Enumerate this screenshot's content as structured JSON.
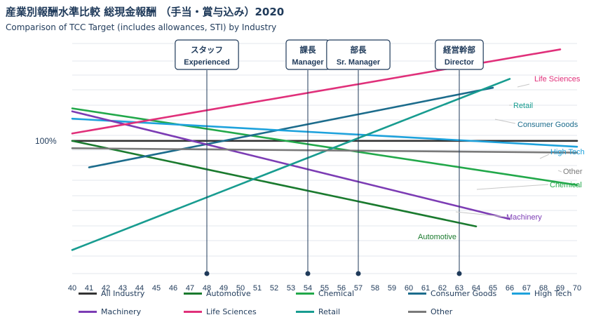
{
  "header": {
    "title": "産業別報酬水準比較 総現金報酬 （手当・賞与込み）2020",
    "subtitle": "Comparison of TCC Target (includes allowances, STI) by Industry"
  },
  "chart_data": {
    "type": "line",
    "title": "産業別報酬水準比較 総現金報酬 （手当・賞与込み）2020",
    "subtitle": "Comparison of TCC Target (includes allowances, STI) by Industry",
    "xlabel": "",
    "ylabel": "",
    "x_ticks": [
      40,
      41,
      42,
      43,
      44,
      45,
      46,
      47,
      48,
      49,
      50,
      51,
      52,
      53,
      54,
      55,
      56,
      57,
      58,
      59,
      60,
      61,
      62,
      63,
      64,
      65,
      66,
      67,
      68,
      69,
      70
    ],
    "xlim": [
      40,
      70
    ],
    "ylim": [
      55,
      133
    ],
    "y_reference": {
      "value": 100,
      "label": "100%"
    },
    "grid": "horizontal",
    "legend_position": "bottom",
    "levels": [
      {
        "x": 48,
        "label_ja": "スタッフ",
        "label_en": "Experienced"
      },
      {
        "x": 54,
        "label_ja": "課長",
        "label_en": "Manager"
      },
      {
        "x": 57,
        "label_ja": "部長",
        "label_en": "Sr. Manager"
      },
      {
        "x": 63,
        "label_ja": "経営幹部",
        "label_en": "Director"
      }
    ],
    "series": [
      {
        "name": "All Industry",
        "color": "#333333",
        "x": [
          40,
          70
        ],
        "values": [
          100,
          100
        ]
      },
      {
        "name": "Automotive",
        "color": "#1a7a2e",
        "x": [
          40,
          64
        ],
        "values": [
          100,
          71
        ]
      },
      {
        "name": "Chemical",
        "color": "#22a84a",
        "x": [
          40,
          70
        ],
        "values": [
          111,
          85
        ]
      },
      {
        "name": "Consumer Goods",
        "color": "#1c6c8c",
        "x": [
          41,
          65
        ],
        "values": [
          91,
          118
        ]
      },
      {
        "name": "High Tech",
        "color": "#1ea2dc",
        "x": [
          40,
          70
        ],
        "values": [
          107.5,
          98
        ]
      },
      {
        "name": "Machinery",
        "color": "#7c3cb4",
        "x": [
          40,
          66
        ],
        "values": [
          110,
          73.5
        ]
      },
      {
        "name": "Life Sciences",
        "color": "#e0307a",
        "x": [
          40,
          69
        ],
        "values": [
          102.5,
          131
        ]
      },
      {
        "name": "Retail",
        "color": "#189c90",
        "x": [
          40,
          66
        ],
        "values": [
          63,
          121
        ]
      },
      {
        "name": "Other",
        "color": "#7a7a7a",
        "x": [
          40,
          70
        ],
        "values": [
          97.5,
          96
        ]
      }
    ],
    "annotations": [
      {
        "text": "Life Sciences",
        "series": "Life Sciences"
      },
      {
        "text": "Retail",
        "series": "Retail"
      },
      {
        "text": "Consumer Goods",
        "series": "Consumer Goods"
      },
      {
        "text": "High Tech",
        "series": "High Tech"
      },
      {
        "text": "Other",
        "series": "Other"
      },
      {
        "text": "Chemical",
        "series": "Chemical"
      },
      {
        "text": "Machinery",
        "series": "Machinery"
      },
      {
        "text": "Automotive",
        "series": "Automotive"
      }
    ]
  }
}
